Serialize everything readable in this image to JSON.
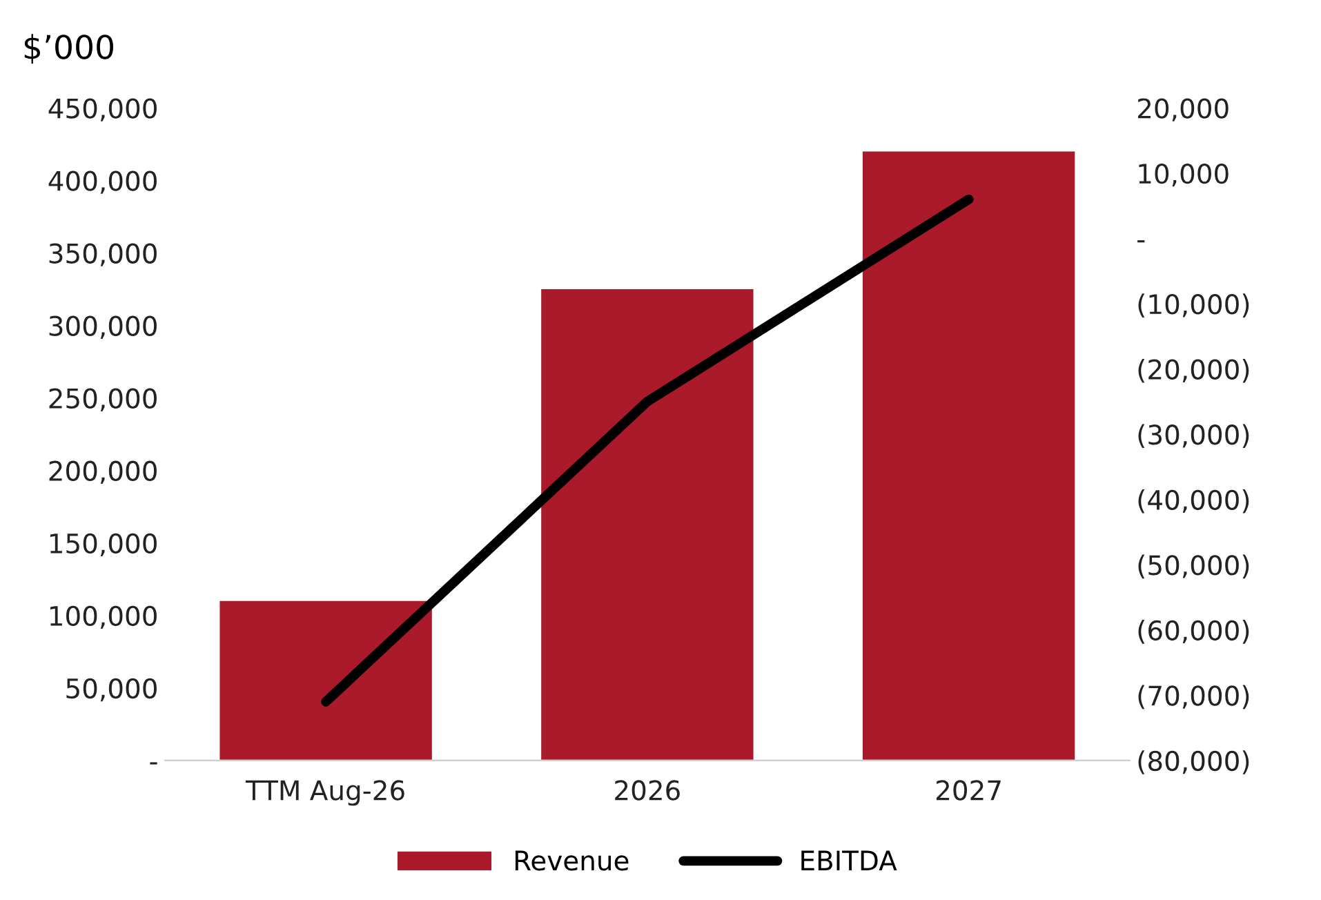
{
  "chart_data": {
    "type": "bar",
    "ylabel": "$’000",
    "categories": [
      "TTM Aug-26",
      "2026",
      "2027"
    ],
    "series": [
      {
        "name": "Revenue",
        "color": "#ab1a2a",
        "values": [
          110000,
          325000,
          420000
        ]
      },
      {
        "name": "EBITDA",
        "type": "line",
        "axis": "y2",
        "color": "#000000",
        "values": [
          -71000,
          -25000,
          6000
        ]
      }
    ],
    "ylim": [
      0,
      450000
    ],
    "yticks": [
      {
        "value": 0,
        "label": "-"
      },
      {
        "value": 50000,
        "label": "50,000"
      },
      {
        "value": 100000,
        "label": "100,000"
      },
      {
        "value": 150000,
        "label": "150,000"
      },
      {
        "value": 200000,
        "label": "200,000"
      },
      {
        "value": 250000,
        "label": "250,000"
      },
      {
        "value": 300000,
        "label": "300,000"
      },
      {
        "value": 350000,
        "label": "350,000"
      },
      {
        "value": 400000,
        "label": "400,000"
      },
      {
        "value": 450000,
        "label": "450,000"
      }
    ],
    "y2lim": [
      -80000,
      20000
    ],
    "y2ticks": [
      {
        "value": -80000,
        "label": "(80,000)"
      },
      {
        "value": -70000,
        "label": "(70,000)"
      },
      {
        "value": -60000,
        "label": "(60,000)"
      },
      {
        "value": -50000,
        "label": "(50,000)"
      },
      {
        "value": -40000,
        "label": "(40,000)"
      },
      {
        "value": -30000,
        "label": "(30,000)"
      },
      {
        "value": -20000,
        "label": "(20,000)"
      },
      {
        "value": -10000,
        "label": "(10,000)"
      },
      {
        "value": 0,
        "label": "-"
      },
      {
        "value": 10000,
        "label": "10,000"
      },
      {
        "value": 20000,
        "label": "20,000"
      }
    ],
    "grid": false,
    "legend": "bottom",
    "marker": "none",
    "line_style": "solid"
  }
}
